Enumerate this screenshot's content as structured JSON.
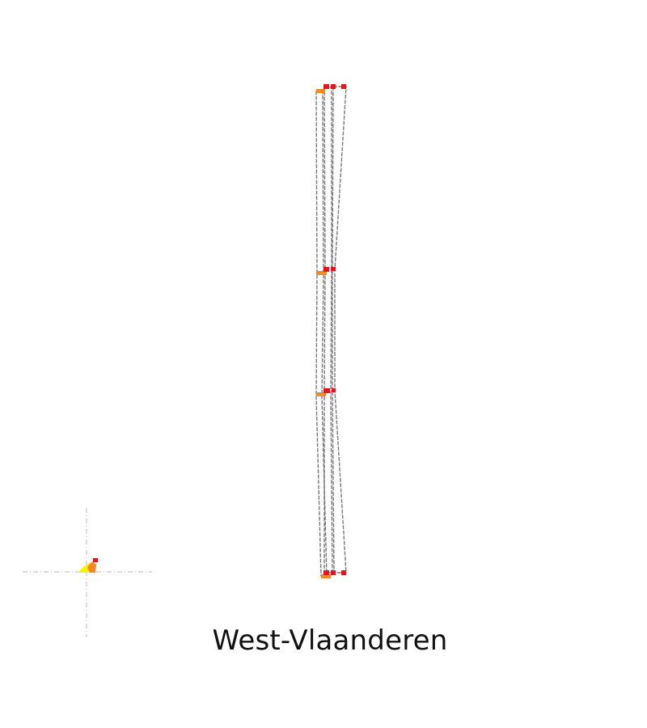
{
  "map": {
    "region_name": "West-Vlaanderen",
    "colors": {
      "background": "#ffffff",
      "outline": "#7a7a7a",
      "marker_red": "#e8141c",
      "marker_orange": "#f08a24",
      "marker_yellow": "#ffef00",
      "crosshair": "#c8c8c8"
    }
  }
}
